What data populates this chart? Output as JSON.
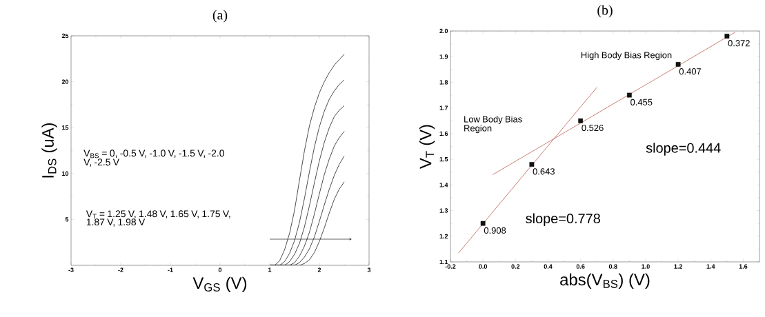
{
  "chart_data": [
    {
      "type": "line",
      "title": "(a)",
      "xlabel": "V$_{GS}$ (V)",
      "ylabel": "I$_{DS}$ (uA)",
      "xlim": [
        -3,
        3
      ],
      "xticks": [
        -3,
        -2,
        -1,
        0,
        1,
        2,
        3
      ],
      "ylim": [
        0,
        25
      ],
      "yticks": [
        5,
        10,
        15,
        20,
        25
      ],
      "annotations": [
        "V$_{BS}$ = 0, -0.5 V, -1.0 V, -1.5 V, -2.0 V, -2.5 V",
        "V$_{T}$ = 1.25 V, 1.48 V, 1.65 V, 1.75 V, 1.87 V, 1.98 V"
      ],
      "series": [
        {
          "color": "#000000",
          "x": [
            1.0,
            1.1,
            1.2,
            1.3,
            1.4,
            1.5,
            1.6,
            1.7,
            1.8,
            1.9,
            2.0,
            2.1,
            2.2,
            2.3,
            2.4,
            2.5
          ],
          "values": [
            0,
            0,
            0.5,
            1.7,
            3.5,
            6,
            9.3,
            12.5,
            15.2,
            17.2,
            18.8,
            20,
            21,
            21.8,
            22.4,
            23.0
          ]
        },
        {
          "color": "#000000",
          "x": [
            1.0,
            1.2,
            1.3,
            1.4,
            1.5,
            1.6,
            1.7,
            1.8,
            1.9,
            2.0,
            2.1,
            2.2,
            2.3,
            2.4,
            2.5
          ],
          "values": [
            0,
            0,
            0.4,
            1.3,
            2.7,
            4.7,
            7.3,
            10.2,
            12.9,
            15.1,
            16.8,
            18.1,
            19.0,
            19.7,
            20.2
          ]
        },
        {
          "color": "#000000",
          "x": [
            1.0,
            1.3,
            1.4,
            1.5,
            1.6,
            1.7,
            1.8,
            1.9,
            2.0,
            2.1,
            2.2,
            2.3,
            2.4,
            2.5
          ],
          "values": [
            0,
            0,
            0.4,
            1.2,
            2.4,
            4.2,
            6.5,
            9.0,
            11.4,
            13.4,
            15.0,
            16.2,
            16.9,
            17.4
          ]
        },
        {
          "color": "#000000",
          "x": [
            1.0,
            1.4,
            1.5,
            1.6,
            1.7,
            1.8,
            1.9,
            2.0,
            2.1,
            2.2,
            2.3,
            2.4,
            2.5
          ],
          "values": [
            0,
            0,
            0.3,
            1.0,
            2.1,
            3.6,
            5.6,
            7.8,
            9.9,
            11.6,
            13.0,
            13.9,
            14.6
          ]
        },
        {
          "color": "#000000",
          "x": [
            1.0,
            1.5,
            1.6,
            1.7,
            1.8,
            1.9,
            2.0,
            2.1,
            2.2,
            2.3,
            2.4,
            2.5
          ],
          "values": [
            0,
            0,
            0.3,
            0.9,
            1.8,
            3.1,
            4.8,
            6.6,
            8.3,
            9.8,
            11.0,
            11.9
          ]
        },
        {
          "color": "#000000",
          "x": [
            1.0,
            1.6,
            1.7,
            1.8,
            1.9,
            2.0,
            2.1,
            2.2,
            2.3,
            2.4,
            2.5
          ],
          "values": [
            0,
            0,
            0.2,
            0.6,
            1.4,
            2.6,
            4.1,
            5.7,
            7.2,
            8.3,
            9.1
          ]
        }
      ]
    },
    {
      "type": "scatter",
      "title": "(b)",
      "xlabel": "abs(V$_{BS}$) (V)",
      "ylabel": "V$_{T}$ (V)",
      "xlim": [
        -0.2,
        1.7
      ],
      "xticks": [
        -0.2,
        {
          "value": 0,
          "label": "0.0"
        },
        0.2,
        0.4,
        0.6,
        0.8,
        {
          "value": 1,
          "label": "1.0"
        },
        1.2,
        1.4,
        1.6
      ],
      "ylim": [
        1.1,
        2.0
      ],
      "yticks": [
        1.1,
        1.2,
        1.3,
        1.4,
        1.5,
        1.6,
        1.7,
        1.8,
        1.9,
        {
          "value": 2,
          "label": "2.0"
        }
      ],
      "annotations": [
        "Low Body Bias Region",
        "High Body Bias Region",
        "slope=0.444",
        "slope=0.778",
        {
          "text": "0.908",
          "x": 0.0,
          "y": 1.25
        },
        {
          "text": "0.643",
          "x": 0.3,
          "y": 1.48
        },
        {
          "text": "0.526",
          "x": 0.6,
          "y": 1.65
        },
        {
          "text": "0.455",
          "x": 0.9,
          "y": 1.75
        },
        {
          "text": "0.407",
          "x": 1.2,
          "y": 1.87
        },
        {
          "text": "0.372",
          "x": 1.5,
          "y": 1.98
        }
      ],
      "series": [
        {
          "type": "scatter",
          "marker": "square",
          "color": "#111111",
          "x": [
            0.0,
            0.3,
            0.6,
            0.9,
            1.2,
            1.5
          ],
          "values": [
            1.25,
            1.48,
            1.65,
            1.75,
            1.87,
            1.98
          ]
        },
        {
          "type": "line",
          "marker": "none",
          "color": "#b04a3c",
          "x": [
            -0.15,
            0.7
          ],
          "values": [
            1.135,
            1.78
          ]
        },
        {
          "type": "line",
          "marker": "none",
          "color": "#b04a3c",
          "x": [
            0.06,
            1.55
          ],
          "values": [
            1.44,
            1.995
          ]
        }
      ]
    }
  ]
}
